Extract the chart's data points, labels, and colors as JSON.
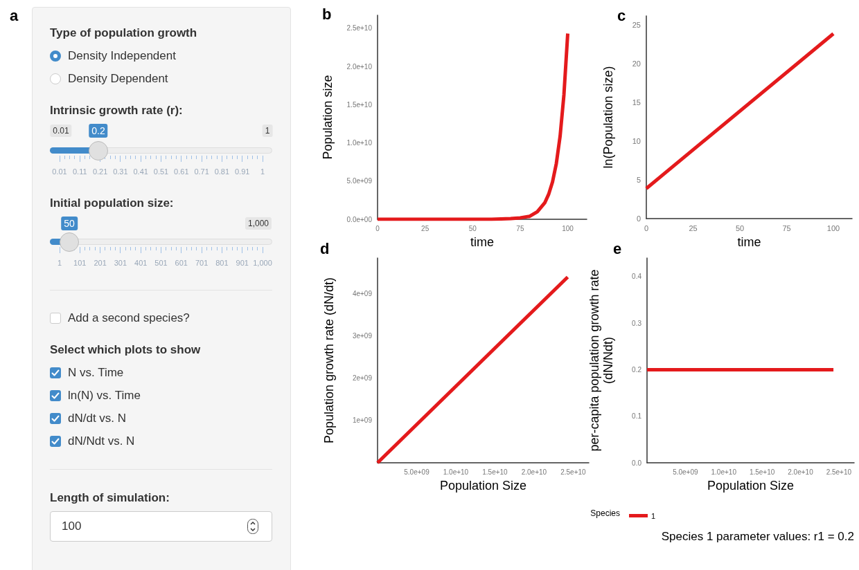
{
  "chart_data": [
    {
      "type": "other",
      "title": "a",
      "annotations": [
        "Type of population growth",
        "Density Independent",
        "Density Dependent",
        "Intrinsic growth rate (r):",
        "0.01",
        "0.2",
        "1",
        "0.01",
        "0.11",
        "0.21",
        "0.31",
        "0.41",
        "0.51",
        "0.61",
        "0.71",
        "0.81",
        "0.91",
        "1",
        "Initial population size:",
        "50",
        "1,000",
        "1",
        "101",
        "201",
        "301",
        "401",
        "501",
        "601",
        "701",
        "801",
        "901",
        "1,000",
        "Add a second species?",
        "Select which plots to show",
        "N vs. Time",
        "ln(N) vs. Time",
        "dN/dt vs. N",
        "dN/Ndt vs. N",
        "Length of simulation:",
        "100"
      ]
    },
    {
      "type": "line",
      "title": "b",
      "xlabel": "time",
      "ylabel": "Population size",
      "marker": "none",
      "line_style": "solid",
      "x": [
        0,
        25,
        50,
        60,
        70,
        75,
        80,
        84,
        88,
        90,
        92,
        94,
        96,
        98,
        100
      ],
      "series": [
        {
          "color": "#e41a1c",
          "values": [
            0,
            0,
            0,
            0,
            100000000.0,
            200000000.0,
            400000000.0,
            1000000000.0,
            2200000000.0,
            3300000000.0,
            4900000000.0,
            7300000000.0,
            10900000000.0,
            16300000000.0,
            24300000000.0
          ]
        }
      ],
      "xlim": [
        0,
        110
      ],
      "xticks": [
        0,
        25,
        50,
        75,
        100
      ],
      "ylim": [
        0,
        26700000000.0
      ],
      "yticks": [
        {
          "value": 0,
          "label": "0.0e+00"
        },
        {
          "value": 5000000000.0,
          "label": "5.0e+09"
        },
        {
          "value": 10000000000.0,
          "label": "1.0e+10"
        },
        {
          "value": 15000000000.0,
          "label": "1.5e+10"
        },
        {
          "value": 20000000000.0,
          "label": "2.0e+10"
        },
        {
          "value": 25000000000.0,
          "label": "2.5e+10"
        }
      ]
    },
    {
      "type": "line",
      "title": "c",
      "xlabel": "time",
      "ylabel": "ln(Population size)",
      "marker": "none",
      "line_style": "solid",
      "x": [
        0,
        100
      ],
      "series": [
        {
          "color": "#e41a1c",
          "values": [
            3.9,
            23.9
          ]
        }
      ],
      "xlim": [
        0,
        110
      ],
      "xticks": [
        0,
        25,
        50,
        75,
        100
      ],
      "ylim": [
        0,
        26.2
      ],
      "yticks": [
        0,
        5,
        10,
        15,
        20,
        25
      ]
    },
    {
      "type": "line",
      "title": "d",
      "xlabel": "Population Size",
      "ylabel": "Population growth rate (dN/dt)",
      "marker": "none",
      "line_style": "solid",
      "x": [
        0,
        24300000000.0
      ],
      "series": [
        {
          "color": "#e41a1c",
          "values": [
            0,
            4400000000.0
          ]
        }
      ],
      "xlim": [
        0,
        27000000000.0
      ],
      "xticks": [
        {
          "value": 5000000000.0,
          "label": "5.0e+09"
        },
        {
          "value": 10000000000.0,
          "label": "1.0e+10"
        },
        {
          "value": 15000000000.0,
          "label": "1.5e+10"
        },
        {
          "value": 20000000000.0,
          "label": "2.0e+10"
        },
        {
          "value": 25000000000.0,
          "label": "2.5e+10"
        }
      ],
      "ylim": [
        0,
        4850000000.0
      ],
      "yticks": [
        {
          "value": 1000000000.0,
          "label": "1e+09"
        },
        {
          "value": 2000000000.0,
          "label": "2e+09"
        },
        {
          "value": 3000000000.0,
          "label": "3e+09"
        },
        {
          "value": 4000000000.0,
          "label": "4e+09"
        }
      ]
    },
    {
      "type": "line",
      "title": "e",
      "xlabel": "Population Size",
      "ylabel": "per-capita population growth rate\n(dN/Ndt)",
      "marker": "none",
      "line_style": "solid",
      "legend": "bottom",
      "legend_title": "Species",
      "annotations": [
        "Species 1 parameter values: r1 = 0.2"
      ],
      "x": [
        0,
        24300000000.0
      ],
      "series": [
        {
          "name": "1",
          "color": "#e41a1c",
          "values": [
            0.2,
            0.2
          ]
        }
      ],
      "xlim": [
        0,
        27000000000.0
      ],
      "xticks": [
        {
          "value": 5000000000.0,
          "label": "5.0e+09"
        },
        {
          "value": 10000000000.0,
          "label": "1.0e+10"
        },
        {
          "value": 15000000000.0,
          "label": "1.5e+10"
        },
        {
          "value": 20000000000.0,
          "label": "2.0e+10"
        },
        {
          "value": 25000000000.0,
          "label": "2.5e+10"
        }
      ],
      "ylim": [
        0,
        0.44
      ],
      "yticks": [
        {
          "value": 0,
          "label": "0.0"
        },
        0.1,
        0.2,
        0.3,
        0.4
      ]
    }
  ]
}
